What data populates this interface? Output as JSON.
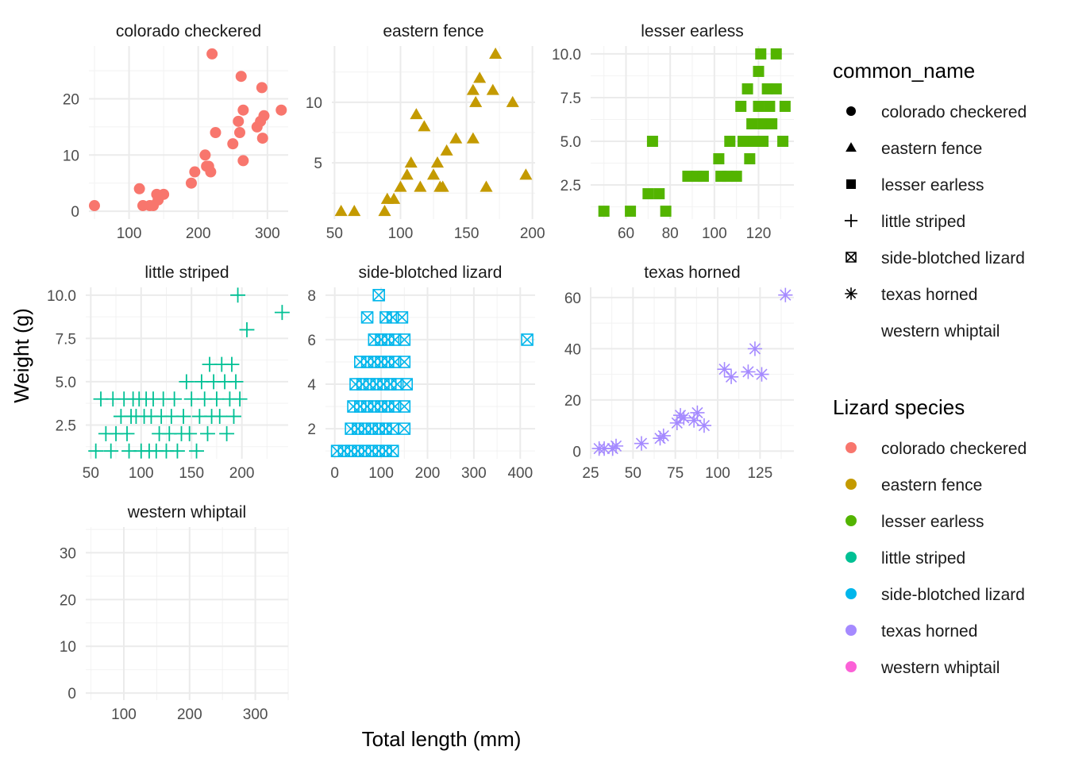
{
  "chart_data": {
    "type": "scatter",
    "xlabel": "Total length (mm)",
    "ylabel": "Weight (g)",
    "grid": true,
    "legend_placement": "right",
    "legends": [
      {
        "title": "common_name",
        "items": [
          {
            "label": "colorado checkered",
            "shape": "circle"
          },
          {
            "label": "eastern fence",
            "shape": "triangle"
          },
          {
            "label": "lesser earless",
            "shape": "square"
          },
          {
            "label": "little striped",
            "shape": "plus"
          },
          {
            "label": "side-blotched lizard",
            "shape": "boxcross"
          },
          {
            "label": "texas horned",
            "shape": "asterisk"
          },
          {
            "label": "western whiptail",
            "shape": "none"
          }
        ]
      },
      {
        "title": "Lizard species",
        "items": [
          {
            "label": "colorado checkered",
            "color": "#F8766D"
          },
          {
            "label": "eastern fence",
            "color": "#C49A00"
          },
          {
            "label": "lesser earless",
            "color": "#53B400"
          },
          {
            "label": "little striped",
            "color": "#00C094"
          },
          {
            "label": "side-blotched lizard",
            "color": "#00B6EB"
          },
          {
            "label": "texas horned",
            "color": "#A58AFF"
          },
          {
            "label": "western whiptail",
            "color": "#FB61D7"
          }
        ]
      }
    ],
    "panels": [
      {
        "name": "colorado checkered",
        "shape": "circle",
        "color": "#F8766D",
        "xlim": [
          42,
          330
        ],
        "ylim": [
          -1.4,
          29.4
        ],
        "xticks": [
          100,
          200,
          300
        ],
        "yticks": [
          0,
          10,
          20
        ],
        "points": [
          [
            50,
            1
          ],
          [
            115,
            4
          ],
          [
            120,
            1
          ],
          [
            130,
            1
          ],
          [
            135,
            1
          ],
          [
            140,
            3
          ],
          [
            142,
            2
          ],
          [
            150,
            3
          ],
          [
            190,
            5
          ],
          [
            195,
            7
          ],
          [
            210,
            10
          ],
          [
            212,
            8
          ],
          [
            215,
            8
          ],
          [
            218,
            7
          ],
          [
            220,
            28
          ],
          [
            225,
            14
          ],
          [
            250,
            12
          ],
          [
            258,
            16
          ],
          [
            262,
            24
          ],
          [
            265,
            9
          ],
          [
            265,
            18
          ],
          [
            260,
            14
          ],
          [
            285,
            15
          ],
          [
            290,
            16
          ],
          [
            292,
            22
          ],
          [
            293,
            13
          ],
          [
            295,
            17
          ],
          [
            320,
            18
          ]
        ]
      },
      {
        "name": "eastern fence",
        "shape": "triangle",
        "color": "#C49A00",
        "xlim": [
          48,
          202
        ],
        "ylim": [
          0.35,
          14.65
        ],
        "xticks": [
          50,
          100,
          150,
          200
        ],
        "yticks": [
          5,
          10
        ],
        "points": [
          [
            55,
            1
          ],
          [
            65,
            1
          ],
          [
            88,
            1
          ],
          [
            90,
            2
          ],
          [
            95,
            2
          ],
          [
            100,
            3
          ],
          [
            105,
            4
          ],
          [
            108,
            5
          ],
          [
            112,
            9
          ],
          [
            115,
            3
          ],
          [
            118,
            8
          ],
          [
            125,
            4
          ],
          [
            128,
            5
          ],
          [
            130,
            3
          ],
          [
            132,
            3
          ],
          [
            135,
            6
          ],
          [
            142,
            7
          ],
          [
            155,
            11
          ],
          [
            155,
            7
          ],
          [
            157,
            10
          ],
          [
            160,
            12
          ],
          [
            165,
            3
          ],
          [
            170,
            11
          ],
          [
            172,
            14
          ],
          [
            185,
            10
          ],
          [
            195,
            4
          ]
        ]
      },
      {
        "name": "lesser earless",
        "shape": "square",
        "color": "#53B400",
        "xlim": [
          44,
          136
        ],
        "ylim": [
          0.55,
          10.45
        ],
        "xticks": [
          60,
          80,
          100,
          120
        ],
        "yticks": [
          2.5,
          5.0,
          7.5,
          10.0
        ],
        "points": [
          [
            50,
            1
          ],
          [
            62,
            1
          ],
          [
            70,
            2
          ],
          [
            72,
            5
          ],
          [
            75,
            2
          ],
          [
            78,
            1
          ],
          [
            88,
            3
          ],
          [
            92,
            3
          ],
          [
            95,
            3
          ],
          [
            102,
            4
          ],
          [
            103,
            3
          ],
          [
            106,
            3
          ],
          [
            107,
            5
          ],
          [
            110,
            3
          ],
          [
            112,
            7
          ],
          [
            113,
            5
          ],
          [
            115,
            8
          ],
          [
            116,
            4
          ],
          [
            117,
            6
          ],
          [
            118,
            5
          ],
          [
            120,
            7
          ],
          [
            121,
            10
          ],
          [
            120,
            9
          ],
          [
            122,
            5
          ],
          [
            122,
            6
          ],
          [
            124,
            8
          ],
          [
            125,
            7
          ],
          [
            126,
            6
          ],
          [
            128,
            10
          ],
          [
            128,
            8
          ],
          [
            131,
            5
          ],
          [
            132,
            7
          ]
        ]
      },
      {
        "name": "little striped",
        "shape": "plus",
        "color": "#00C094",
        "xlim": [
          45,
          246
        ],
        "ylim": [
          0.55,
          10.45
        ],
        "xticks": [
          50,
          100,
          150,
          200
        ],
        "yticks": [
          2.5,
          5.0,
          7.5,
          10.0
        ],
        "points": [
          [
            55,
            1
          ],
          [
            60,
            4
          ],
          [
            65,
            2
          ],
          [
            70,
            1
          ],
          [
            72,
            4
          ],
          [
            75,
            2
          ],
          [
            80,
            3
          ],
          [
            83,
            4
          ],
          [
            86,
            2
          ],
          [
            88,
            1
          ],
          [
            90,
            3
          ],
          [
            92,
            4
          ],
          [
            95,
            3
          ],
          [
            98,
            4
          ],
          [
            100,
            1
          ],
          [
            103,
            3
          ],
          [
            105,
            4
          ],
          [
            108,
            1
          ],
          [
            110,
            3
          ],
          [
            112,
            4
          ],
          [
            115,
            1
          ],
          [
            118,
            2
          ],
          [
            120,
            3
          ],
          [
            122,
            4
          ],
          [
            125,
            1
          ],
          [
            128,
            2
          ],
          [
            130,
            3
          ],
          [
            133,
            4
          ],
          [
            136,
            1
          ],
          [
            140,
            2
          ],
          [
            142,
            3
          ],
          [
            145,
            5
          ],
          [
            148,
            2
          ],
          [
            150,
            4
          ],
          [
            155,
            1
          ],
          [
            158,
            3
          ],
          [
            160,
            5
          ],
          [
            163,
            4
          ],
          [
            166,
            2
          ],
          [
            168,
            6
          ],
          [
            170,
            3
          ],
          [
            172,
            5
          ],
          [
            175,
            4
          ],
          [
            178,
            3
          ],
          [
            180,
            6
          ],
          [
            183,
            5
          ],
          [
            185,
            2
          ],
          [
            188,
            4
          ],
          [
            190,
            6
          ],
          [
            192,
            3
          ],
          [
            194,
            5
          ],
          [
            196,
            10
          ],
          [
            198,
            4
          ],
          [
            205,
            8
          ],
          [
            240,
            9
          ]
        ]
      },
      {
        "name": "side-blotched lizard",
        "shape": "boxcross",
        "color": "#00B6EB",
        "xlim": [
          -20,
          432
        ],
        "ylim": [
          0.65,
          8.35
        ],
        "xticks": [
          0,
          100,
          200,
          300,
          400
        ],
        "yticks": [
          2,
          4,
          6,
          8
        ],
        "points": [
          [
            5,
            1
          ],
          [
            20,
            1
          ],
          [
            35,
            1
          ],
          [
            50,
            1
          ],
          [
            65,
            1
          ],
          [
            80,
            1
          ],
          [
            95,
            1
          ],
          [
            110,
            1
          ],
          [
            125,
            1
          ],
          [
            35,
            2
          ],
          [
            50,
            2
          ],
          [
            65,
            2
          ],
          [
            80,
            2
          ],
          [
            95,
            2
          ],
          [
            110,
            2
          ],
          [
            125,
            2
          ],
          [
            150,
            2
          ],
          [
            40,
            3
          ],
          [
            55,
            3
          ],
          [
            70,
            3
          ],
          [
            85,
            3
          ],
          [
            100,
            3
          ],
          [
            115,
            3
          ],
          [
            130,
            3
          ],
          [
            150,
            3
          ],
          [
            45,
            4
          ],
          [
            60,
            4
          ],
          [
            75,
            4
          ],
          [
            90,
            4
          ],
          [
            105,
            4
          ],
          [
            120,
            4
          ],
          [
            135,
            4
          ],
          [
            155,
            4
          ],
          [
            55,
            5
          ],
          [
            70,
            5
          ],
          [
            85,
            5
          ],
          [
            100,
            5
          ],
          [
            115,
            5
          ],
          [
            130,
            5
          ],
          [
            150,
            5
          ],
          [
            85,
            6
          ],
          [
            100,
            6
          ],
          [
            115,
            6
          ],
          [
            130,
            6
          ],
          [
            150,
            6
          ],
          [
            415,
            6
          ],
          [
            70,
            7
          ],
          [
            110,
            7
          ],
          [
            125,
            7
          ],
          [
            145,
            7
          ],
          [
            95,
            8
          ]
        ]
      },
      {
        "name": "texas horned",
        "shape": "asterisk",
        "color": "#A58AFF",
        "xlim": [
          25,
          145
        ],
        "ylim": [
          -3,
          64
        ],
        "xticks": [
          25,
          50,
          75,
          100,
          125
        ],
        "yticks": [
          0,
          20,
          40,
          60
        ],
        "points": [
          [
            30,
            1
          ],
          [
            33,
            1
          ],
          [
            38,
            1
          ],
          [
            40,
            2
          ],
          [
            55,
            3
          ],
          [
            66,
            5
          ],
          [
            68,
            6
          ],
          [
            76,
            11
          ],
          [
            78,
            14
          ],
          [
            80,
            13
          ],
          [
            86,
            12
          ],
          [
            88,
            15
          ],
          [
            92,
            10
          ],
          [
            104,
            32
          ],
          [
            108,
            29
          ],
          [
            118,
            31
          ],
          [
            122,
            40
          ],
          [
            126,
            30
          ],
          [
            140,
            61
          ]
        ]
      },
      {
        "name": "western whiptail",
        "shape": "none",
        "color": "#FB61D7",
        "xlim": [
          42,
          350
        ],
        "ylim": [
          -1.5,
          35.5
        ],
        "xticks": [
          100,
          200,
          300
        ],
        "yticks": [
          0,
          10,
          20,
          30
        ],
        "points": []
      }
    ]
  }
}
